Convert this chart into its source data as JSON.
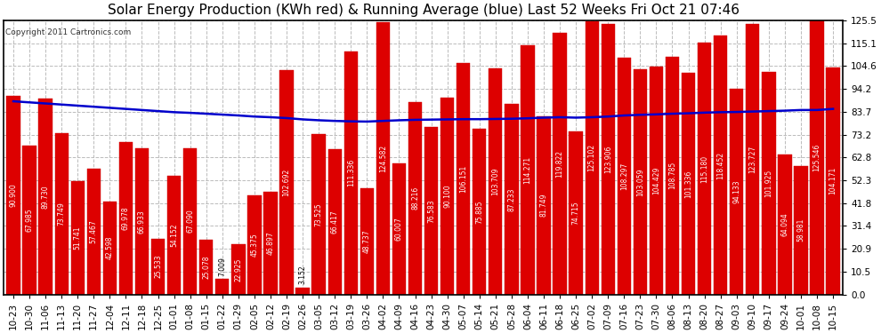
{
  "title": "Solar Energy Production (KWh red) & Running Average (blue) Last 52 Weeks Fri Oct 21 07:46",
  "copyright": "Copyright 2011 Cartronics.com",
  "bar_color": "#dd0000",
  "line_color": "#0000cc",
  "background_color": "#ffffff",
  "grid_color": "#bbbbbb",
  "categories": [
    "10-23",
    "10-30",
    "11-06",
    "11-13",
    "11-20",
    "11-27",
    "12-04",
    "12-11",
    "12-18",
    "12-25",
    "01-01",
    "01-08",
    "01-15",
    "01-22",
    "01-29",
    "02-05",
    "02-12",
    "02-19",
    "02-26",
    "03-05",
    "03-12",
    "03-19",
    "03-26",
    "04-02",
    "04-09",
    "04-16",
    "04-23",
    "04-30",
    "05-07",
    "05-14",
    "05-21",
    "05-28",
    "06-04",
    "06-11",
    "06-18",
    "06-25",
    "07-02",
    "07-09",
    "07-16",
    "07-23",
    "07-30",
    "08-06",
    "08-13",
    "08-20",
    "08-27",
    "09-03",
    "09-10",
    "09-17",
    "09-24",
    "10-01",
    "10-08",
    "10-15"
  ],
  "values": [
    90.9,
    67.985,
    89.73,
    73.749,
    51.741,
    57.467,
    42.598,
    69.978,
    66.933,
    25.533,
    54.152,
    67.09,
    25.078,
    7.009,
    22.925,
    45.375,
    46.897,
    102.692,
    3.152,
    73.525,
    66.417,
    111.336,
    48.737,
    124.582,
    60.007,
    88.216,
    76.583,
    90.1,
    106.151,
    75.885,
    103.709,
    87.233,
    114.271,
    81.749,
    119.822,
    74.715,
    125.102,
    123.906,
    108.297,
    103.059,
    104.429,
    108.785,
    101.336,
    115.18,
    118.452,
    94.133,
    123.727,
    101.925,
    64.0945,
    58.981,
    125.546,
    104.171
  ],
  "running_avg": [
    88.5,
    88.0,
    87.5,
    87.0,
    86.5,
    86.0,
    85.5,
    85.0,
    84.5,
    84.0,
    83.5,
    83.2,
    82.8,
    82.4,
    82.0,
    81.5,
    81.2,
    80.8,
    80.2,
    79.8,
    79.5,
    79.3,
    79.2,
    79.5,
    79.8,
    80.0,
    80.1,
    80.2,
    80.3,
    80.3,
    80.4,
    80.5,
    80.7,
    81.0,
    81.2,
    81.0,
    81.2,
    81.5,
    82.0,
    82.3,
    82.5,
    82.8,
    83.0,
    83.3,
    83.5,
    83.6,
    83.8,
    84.0,
    84.2,
    84.5,
    84.5,
    85.0
  ],
  "yticks": [
    0.0,
    10.5,
    20.9,
    31.4,
    41.8,
    52.3,
    62.8,
    73.2,
    83.7,
    94.2,
    104.6,
    115.1,
    125.5
  ],
  "ylim_max": 125.5,
  "title_fontsize": 11,
  "tick_fontsize": 7.5,
  "label_fontsize": 5.5
}
